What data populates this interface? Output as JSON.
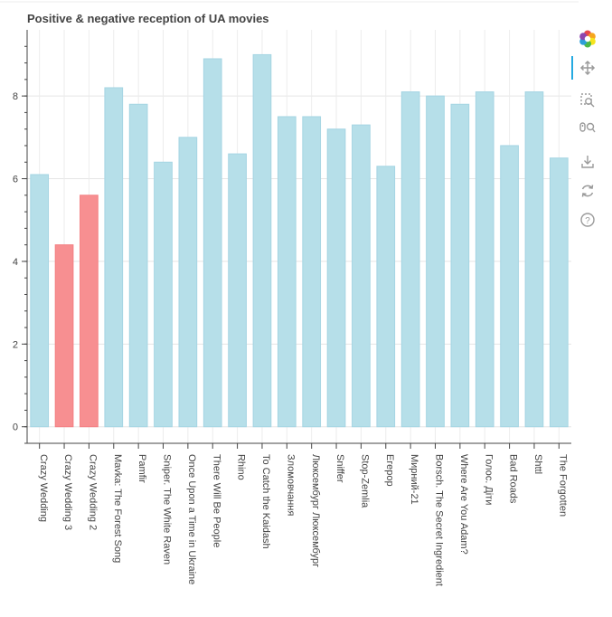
{
  "chart_data": {
    "type": "bar",
    "title": "Positive & negative reception of UA movies",
    "xlabel": "",
    "ylabel": "",
    "ylim": [
      -0.4,
      9.6
    ],
    "yticks": [
      0,
      2,
      4,
      6,
      8
    ],
    "grid": true,
    "categories": [
      "Crazy Wedding",
      "Crazy Wedding 3",
      "Crazy Wedding 2",
      "Mavka: The Forest Song",
      "Pamfir",
      "Sniper. The White Raven",
      "Once Upon a Time in Ukraine",
      "There Will Be People",
      "Rhino",
      "To Catch the Kaidash",
      "Зломовчання",
      "Люксембург Люксембург",
      "Sniffer",
      "Stop-Zemlia",
      "Егерор",
      "Мирний-21",
      "Borsch. The Secret Ingredient",
      "Where Are You Adam?",
      "Голос. Діти",
      "Bad Roads",
      "Shttl",
      "The Forgotten"
    ],
    "values": [
      6.1,
      4.4,
      5.6,
      8.2,
      7.8,
      6.4,
      7.0,
      8.9,
      6.6,
      9.0,
      7.5,
      7.5,
      7.2,
      7.3,
      6.3,
      8.1,
      8.0,
      7.8,
      8.1,
      6.8,
      8.1,
      6.5
    ],
    "colors": [
      "lightblue",
      "red",
      "red",
      "lightblue",
      "lightblue",
      "lightblue",
      "lightblue",
      "lightblue",
      "lightblue",
      "lightblue",
      "lightblue",
      "lightblue",
      "lightblue",
      "lightblue",
      "lightblue",
      "lightblue",
      "lightblue",
      "lightblue",
      "lightblue",
      "lightblue",
      "lightblue",
      "lightblue"
    ],
    "palette": {
      "lightblue": {
        "fill": "#b6dfe9",
        "stroke": "#a5d5e3"
      },
      "red": {
        "fill": "#f78f91",
        "stroke": "#f37f82"
      }
    }
  },
  "toolbar": {
    "tools": [
      "bokeh-logo-icon",
      "pan-icon",
      "box-zoom-icon",
      "wheel-zoom-icon",
      "save-icon",
      "reset-icon",
      "help-icon"
    ],
    "active_tool": "pan-icon"
  }
}
